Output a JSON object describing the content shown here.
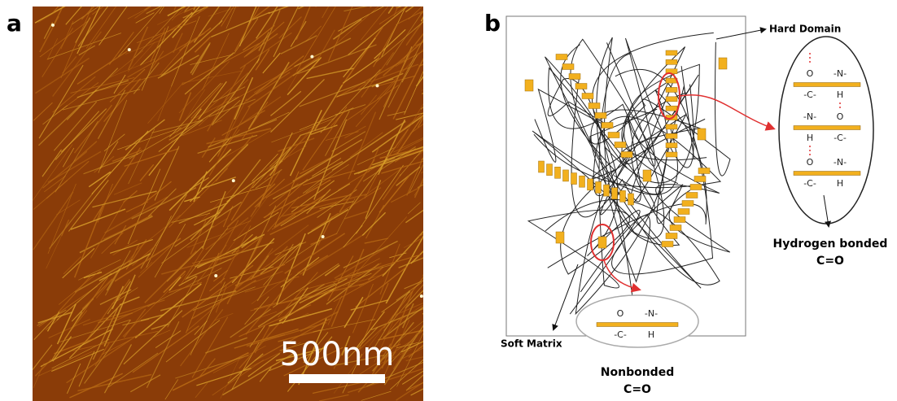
{
  "panel_a": {
    "label": "a",
    "scale_bar": "500nm"
  },
  "panel_b": {
    "label": "b",
    "hard_domain": "Hard Domain",
    "soft_matrix": "Soft Matrix",
    "hydrogen_bonded": {
      "title": "Hydrogen bonded",
      "group": "C=O",
      "rows": [
        {
          "top": [
            "O",
            "-N-"
          ],
          "bottom": [
            "-C-",
            "H"
          ]
        },
        {
          "top": [
            "-N-",
            "O"
          ],
          "bottom": [
            "H",
            "-C-"
          ]
        },
        {
          "top": [
            "O",
            "-N-"
          ],
          "bottom": [
            "-C-",
            "H"
          ]
        }
      ]
    },
    "nonbonded": {
      "title": "Nonbonded",
      "group": "C=O",
      "top": [
        "O",
        "-N-"
      ],
      "bottom": [
        "-C-",
        "H"
      ]
    }
  }
}
